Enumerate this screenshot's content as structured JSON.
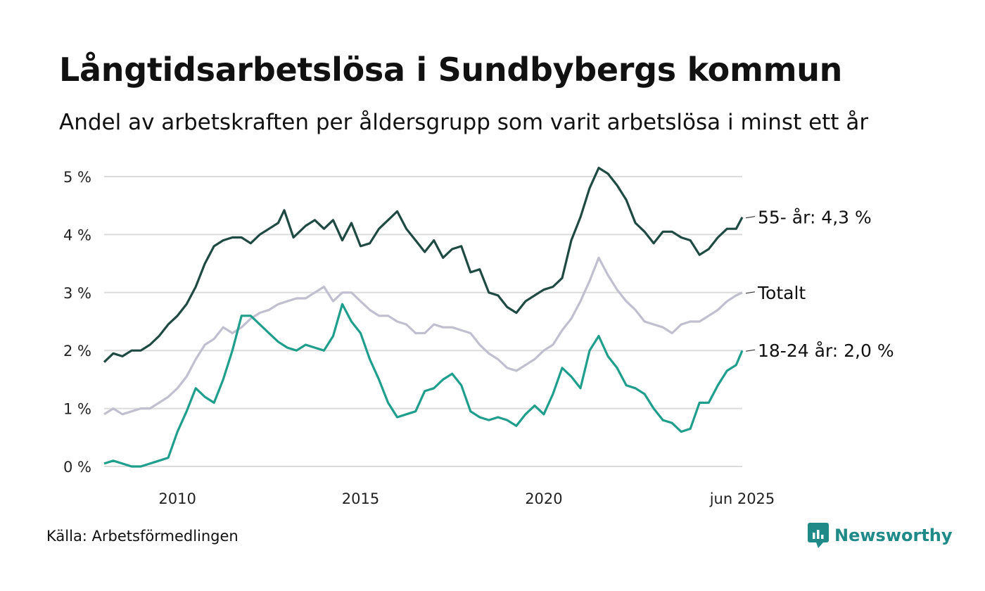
{
  "title": "Långtidsarbetslösa i Sundbybergs kommun",
  "subtitle": "Andel av arbetskraften per åldersgrupp som varit arbetslösa i minst ett år",
  "source": "Källa: Arbetsförmedlingen",
  "brand": "Newsworthy",
  "colors": {
    "older": "#1f4a42",
    "total": "#c0bfcf",
    "young": "#1f9e8c",
    "grid": "#dcdcdc",
    "brand": "#1f8a87"
  },
  "chart_data": {
    "type": "line",
    "title": "Långtidsarbetslösa i Sundbybergs kommun",
    "subtitle": "Andel av arbetskraften per åldersgrupp som varit arbetslösa i minst ett år",
    "xlim": [
      "2008-01",
      "2025-06"
    ],
    "ylim": [
      0,
      5
    ],
    "y_unit": "%",
    "grid": "horizontal",
    "yticks": [
      {
        "value": 0,
        "label": "0 %"
      },
      {
        "value": 1,
        "label": "1 %"
      },
      {
        "value": 2,
        "label": "2 %"
      },
      {
        "value": 3,
        "label": "3 %"
      },
      {
        "value": 4,
        "label": "4 %"
      },
      {
        "value": 5,
        "label": "5 %"
      }
    ],
    "xticks": [
      {
        "date": "2010-01",
        "label": "2010"
      },
      {
        "date": "2015-01",
        "label": "2015"
      },
      {
        "date": "2020-01",
        "label": "2020"
      },
      {
        "date": "2025-06",
        "label": "jun 2025"
      }
    ],
    "series": [
      {
        "key": "older",
        "end_label": "55- år: 4,3 %",
        "points": [
          [
            "2008-01",
            1.8
          ],
          [
            "2008-04",
            1.95
          ],
          [
            "2008-07",
            1.9
          ],
          [
            "2008-10",
            2.0
          ],
          [
            "2009-01",
            2.0
          ],
          [
            "2009-04",
            2.1
          ],
          [
            "2009-07",
            2.25
          ],
          [
            "2009-10",
            2.45
          ],
          [
            "2010-01",
            2.6
          ],
          [
            "2010-04",
            2.8
          ],
          [
            "2010-07",
            3.1
          ],
          [
            "2010-10",
            3.5
          ],
          [
            "2011-01",
            3.8
          ],
          [
            "2011-04",
            3.9
          ],
          [
            "2011-07",
            3.95
          ],
          [
            "2011-10",
            3.95
          ],
          [
            "2012-01",
            3.85
          ],
          [
            "2012-04",
            4.0
          ],
          [
            "2012-07",
            4.1
          ],
          [
            "2012-10",
            4.2
          ],
          [
            "2012-12",
            4.42
          ],
          [
            "2013-03",
            3.95
          ],
          [
            "2013-07",
            4.15
          ],
          [
            "2013-10",
            4.25
          ],
          [
            "2014-01",
            4.1
          ],
          [
            "2014-04",
            4.25
          ],
          [
            "2014-07",
            3.9
          ],
          [
            "2014-10",
            4.2
          ],
          [
            "2015-01",
            3.8
          ],
          [
            "2015-04",
            3.85
          ],
          [
            "2015-07",
            4.1
          ],
          [
            "2015-10",
            4.25
          ],
          [
            "2016-01",
            4.4
          ],
          [
            "2016-04",
            4.1
          ],
          [
            "2016-07",
            3.9
          ],
          [
            "2016-10",
            3.7
          ],
          [
            "2017-01",
            3.9
          ],
          [
            "2017-04",
            3.6
          ],
          [
            "2017-07",
            3.75
          ],
          [
            "2017-10",
            3.8
          ],
          [
            "2018-01",
            3.35
          ],
          [
            "2018-04",
            3.4
          ],
          [
            "2018-07",
            3.0
          ],
          [
            "2018-10",
            2.95
          ],
          [
            "2019-01",
            2.75
          ],
          [
            "2019-04",
            2.65
          ],
          [
            "2019-07",
            2.85
          ],
          [
            "2019-10",
            2.95
          ],
          [
            "2020-01",
            3.05
          ],
          [
            "2020-04",
            3.1
          ],
          [
            "2020-07",
            3.25
          ],
          [
            "2020-10",
            3.9
          ],
          [
            "2021-01",
            4.3
          ],
          [
            "2021-04",
            4.8
          ],
          [
            "2021-07",
            5.15
          ],
          [
            "2021-10",
            5.05
          ],
          [
            "2022-01",
            4.85
          ],
          [
            "2022-04",
            4.6
          ],
          [
            "2022-07",
            4.2
          ],
          [
            "2022-10",
            4.05
          ],
          [
            "2023-01",
            3.85
          ],
          [
            "2023-04",
            4.05
          ],
          [
            "2023-07",
            4.05
          ],
          [
            "2023-10",
            3.95
          ],
          [
            "2024-01",
            3.9
          ],
          [
            "2024-04",
            3.65
          ],
          [
            "2024-07",
            3.75
          ],
          [
            "2024-10",
            3.95
          ],
          [
            "2025-01",
            4.1
          ],
          [
            "2025-04",
            4.1
          ],
          [
            "2025-06",
            4.3
          ]
        ]
      },
      {
        "key": "total",
        "end_label": "Totalt",
        "points": [
          [
            "2008-01",
            0.9
          ],
          [
            "2008-04",
            1.0
          ],
          [
            "2008-07",
            0.9
          ],
          [
            "2008-10",
            0.95
          ],
          [
            "2009-01",
            1.0
          ],
          [
            "2009-04",
            1.0
          ],
          [
            "2009-07",
            1.1
          ],
          [
            "2009-10",
            1.2
          ],
          [
            "2010-01",
            1.35
          ],
          [
            "2010-04",
            1.55
          ],
          [
            "2010-07",
            1.85
          ],
          [
            "2010-10",
            2.1
          ],
          [
            "2011-01",
            2.2
          ],
          [
            "2011-04",
            2.4
          ],
          [
            "2011-07",
            2.3
          ],
          [
            "2011-10",
            2.4
          ],
          [
            "2012-01",
            2.55
          ],
          [
            "2012-04",
            2.65
          ],
          [
            "2012-07",
            2.7
          ],
          [
            "2012-10",
            2.8
          ],
          [
            "2013-01",
            2.85
          ],
          [
            "2013-04",
            2.9
          ],
          [
            "2013-07",
            2.9
          ],
          [
            "2013-10",
            3.0
          ],
          [
            "2014-01",
            3.1
          ],
          [
            "2014-04",
            2.85
          ],
          [
            "2014-07",
            3.0
          ],
          [
            "2014-10",
            3.0
          ],
          [
            "2015-01",
            2.85
          ],
          [
            "2015-04",
            2.7
          ],
          [
            "2015-07",
            2.6
          ],
          [
            "2015-10",
            2.6
          ],
          [
            "2016-01",
            2.5
          ],
          [
            "2016-04",
            2.45
          ],
          [
            "2016-07",
            2.3
          ],
          [
            "2016-10",
            2.3
          ],
          [
            "2017-01",
            2.45
          ],
          [
            "2017-04",
            2.4
          ],
          [
            "2017-07",
            2.4
          ],
          [
            "2017-10",
            2.35
          ],
          [
            "2018-01",
            2.3
          ],
          [
            "2018-04",
            2.1
          ],
          [
            "2018-07",
            1.95
          ],
          [
            "2018-10",
            1.85
          ],
          [
            "2019-01",
            1.7
          ],
          [
            "2019-04",
            1.65
          ],
          [
            "2019-07",
            1.75
          ],
          [
            "2019-10",
            1.85
          ],
          [
            "2020-01",
            2.0
          ],
          [
            "2020-04",
            2.1
          ],
          [
            "2020-07",
            2.35
          ],
          [
            "2020-10",
            2.55
          ],
          [
            "2021-01",
            2.85
          ],
          [
            "2021-04",
            3.2
          ],
          [
            "2021-07",
            3.6
          ],
          [
            "2021-10",
            3.3
          ],
          [
            "2022-01",
            3.05
          ],
          [
            "2022-04",
            2.85
          ],
          [
            "2022-07",
            2.7
          ],
          [
            "2022-10",
            2.5
          ],
          [
            "2023-01",
            2.45
          ],
          [
            "2023-04",
            2.4
          ],
          [
            "2023-07",
            2.3
          ],
          [
            "2023-10",
            2.45
          ],
          [
            "2024-01",
            2.5
          ],
          [
            "2024-04",
            2.5
          ],
          [
            "2024-07",
            2.6
          ],
          [
            "2024-10",
            2.7
          ],
          [
            "2025-01",
            2.85
          ],
          [
            "2025-04",
            2.95
          ],
          [
            "2025-06",
            3.0
          ]
        ]
      },
      {
        "key": "young",
        "end_label": "18-24 år: 2,0 %",
        "points": [
          [
            "2008-01",
            0.05
          ],
          [
            "2008-04",
            0.1
          ],
          [
            "2008-07",
            0.05
          ],
          [
            "2008-10",
            0.0
          ],
          [
            "2009-01",
            0.0
          ],
          [
            "2009-04",
            0.05
          ],
          [
            "2009-07",
            0.1
          ],
          [
            "2009-10",
            0.15
          ],
          [
            "2010-01",
            0.6
          ],
          [
            "2010-04",
            0.95
          ],
          [
            "2010-07",
            1.35
          ],
          [
            "2010-10",
            1.2
          ],
          [
            "2011-01",
            1.1
          ],
          [
            "2011-04",
            1.5
          ],
          [
            "2011-07",
            2.0
          ],
          [
            "2011-10",
            2.6
          ],
          [
            "2012-01",
            2.6
          ],
          [
            "2012-04",
            2.45
          ],
          [
            "2012-07",
            2.3
          ],
          [
            "2012-10",
            2.15
          ],
          [
            "2013-01",
            2.05
          ],
          [
            "2013-04",
            2.0
          ],
          [
            "2013-07",
            2.1
          ],
          [
            "2013-10",
            2.05
          ],
          [
            "2014-01",
            2.0
          ],
          [
            "2014-04",
            2.25
          ],
          [
            "2014-07",
            2.8
          ],
          [
            "2014-10",
            2.5
          ],
          [
            "2015-01",
            2.3
          ],
          [
            "2015-04",
            1.85
          ],
          [
            "2015-07",
            1.5
          ],
          [
            "2015-10",
            1.1
          ],
          [
            "2016-01",
            0.85
          ],
          [
            "2016-04",
            0.9
          ],
          [
            "2016-07",
            0.95
          ],
          [
            "2016-10",
            1.3
          ],
          [
            "2017-01",
            1.35
          ],
          [
            "2017-04",
            1.5
          ],
          [
            "2017-07",
            1.6
          ],
          [
            "2017-10",
            1.4
          ],
          [
            "2018-01",
            0.95
          ],
          [
            "2018-04",
            0.85
          ],
          [
            "2018-07",
            0.8
          ],
          [
            "2018-10",
            0.85
          ],
          [
            "2019-01",
            0.8
          ],
          [
            "2019-04",
            0.7
          ],
          [
            "2019-07",
            0.9
          ],
          [
            "2019-10",
            1.05
          ],
          [
            "2020-01",
            0.9
          ],
          [
            "2020-04",
            1.25
          ],
          [
            "2020-07",
            1.7
          ],
          [
            "2020-10",
            1.55
          ],
          [
            "2021-01",
            1.35
          ],
          [
            "2021-04",
            2.0
          ],
          [
            "2021-07",
            2.25
          ],
          [
            "2021-10",
            1.9
          ],
          [
            "2022-01",
            1.7
          ],
          [
            "2022-04",
            1.4
          ],
          [
            "2022-07",
            1.35
          ],
          [
            "2022-10",
            1.25
          ],
          [
            "2023-01",
            1.0
          ],
          [
            "2023-04",
            0.8
          ],
          [
            "2023-07",
            0.75
          ],
          [
            "2023-10",
            0.6
          ],
          [
            "2024-01",
            0.65
          ],
          [
            "2024-04",
            1.1
          ],
          [
            "2024-07",
            1.1
          ],
          [
            "2024-10",
            1.4
          ],
          [
            "2025-01",
            1.65
          ],
          [
            "2025-04",
            1.75
          ],
          [
            "2025-06",
            2.0
          ]
        ]
      }
    ]
  }
}
